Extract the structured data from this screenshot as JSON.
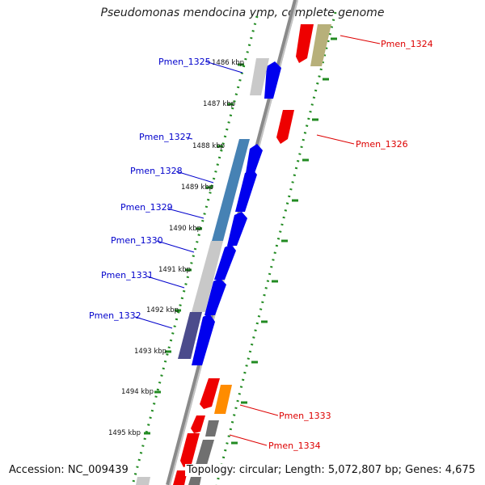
{
  "title": "Pseudomonas mendocina ymp, complete genome",
  "footer": {
    "accession": "Accession: NC_009439",
    "topology": "Topology: circular; Length: 5,072,807 bp; Genes: 4,675"
  },
  "colors": {
    "label_blue": "#0000cc",
    "label_red": "#dd0000",
    "cds_forward": "#0000ee",
    "cds_reverse": "#ee0000",
    "backbone": "#888888",
    "ticks": "#228b22"
  },
  "ticks": [
    "1486 kbp",
    "1487 kbp",
    "1488 kbp",
    "1489 kbp",
    "1490 kbp",
    "1491 kbp",
    "1492 kbp",
    "1493 kbp",
    "1494 kbp",
    "1495 kbp"
  ],
  "left_genes": [
    {
      "name": "Pmen_1325"
    },
    {
      "name": "Pmen_1327"
    },
    {
      "name": "Pmen_1328"
    },
    {
      "name": "Pmen_1329"
    },
    {
      "name": "Pmen_1330"
    },
    {
      "name": "Pmen_1331"
    },
    {
      "name": "Pmen_1332"
    }
  ],
  "right_genes": [
    {
      "name": "Pmen_1324"
    },
    {
      "name": "Pmen_1326"
    },
    {
      "name": "Pmen_1333"
    },
    {
      "name": "Pmen_1334"
    }
  ]
}
